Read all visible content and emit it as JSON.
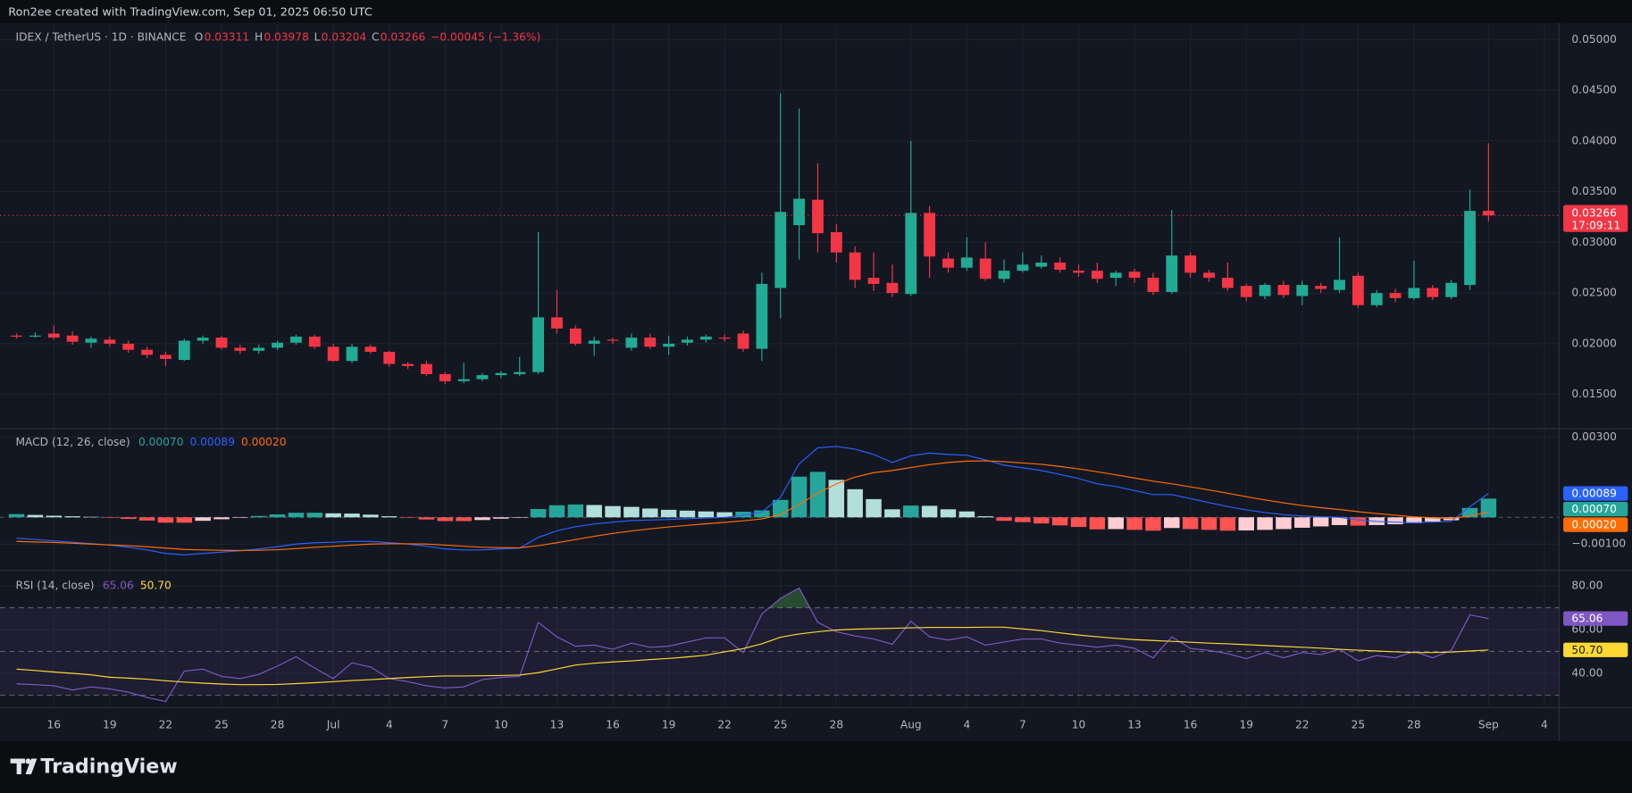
{
  "header": {
    "text": "Ron2ee created with TradingView.com, Sep 01, 2025 06:50 UTC"
  },
  "footer": {
    "logo": "TradingView"
  },
  "chart_data": [
    {
      "type": "candlestick",
      "title": "IDEX / TetherUS · 1D · BINANCE",
      "legend_keys": [
        "O",
        "H",
        "L",
        "C"
      ],
      "change": "−0.00045 (−1.36%)",
      "countdown": "17:09:11",
      "up_color": "#22ab94",
      "down_color": "#f23645",
      "grid": true,
      "open": [
        0.0208,
        0.0208,
        0.021,
        0.0208,
        0.0201,
        0.0204,
        0.02,
        0.0194,
        0.0189,
        0.0184,
        0.0203,
        0.0206,
        0.0196,
        0.0193,
        0.0196,
        0.0201,
        0.0207,
        0.0197,
        0.0183,
        0.0197,
        0.0192,
        0.018,
        0.018,
        0.017,
        0.0163,
        0.0165,
        0.0169,
        0.017,
        0.0172,
        0.0226,
        0.0215,
        0.02,
        0.0204,
        0.0196,
        0.0206,
        0.0197,
        0.0201,
        0.0204,
        0.0206,
        0.021,
        0.0195,
        0.0255,
        0.0317,
        0.0342,
        0.031,
        0.029,
        0.0265,
        0.026,
        0.0249,
        0.0329,
        0.0284,
        0.0275,
        0.0284,
        0.0264,
        0.0272,
        0.0276,
        0.028,
        0.0272,
        0.0272,
        0.0265,
        0.0271,
        0.0265,
        0.0251,
        0.0287,
        0.027,
        0.0265,
        0.0257,
        0.0247,
        0.0258,
        0.0247,
        0.0257,
        0.0253,
        0.0267,
        0.0238,
        0.025,
        0.0245,
        0.0255,
        0.0246,
        0.0258,
        0.03311
      ],
      "high": [
        0.021,
        0.0211,
        0.0218,
        0.0212,
        0.0207,
        0.0207,
        0.0203,
        0.0197,
        0.0192,
        0.0205,
        0.0208,
        0.0208,
        0.0199,
        0.0199,
        0.0203,
        0.0209,
        0.0209,
        0.02,
        0.02,
        0.0199,
        0.0193,
        0.0182,
        0.0183,
        0.0172,
        0.0181,
        0.0171,
        0.0173,
        0.0187,
        0.031,
        0.0253,
        0.0218,
        0.0207,
        0.0206,
        0.021,
        0.021,
        0.0208,
        0.0207,
        0.0209,
        0.0209,
        0.0213,
        0.027,
        0.0447,
        0.0432,
        0.0378,
        0.0318,
        0.0296,
        0.029,
        0.0278,
        0.04,
        0.0336,
        0.029,
        0.0305,
        0.03,
        0.0283,
        0.029,
        0.0287,
        0.0285,
        0.0278,
        0.028,
        0.0272,
        0.0274,
        0.027,
        0.0332,
        0.029,
        0.0273,
        0.028,
        0.0259,
        0.026,
        0.0262,
        0.0262,
        0.026,
        0.0305,
        0.027,
        0.0253,
        0.0254,
        0.0282,
        0.0258,
        0.0263,
        0.0352,
        0.03978
      ],
      "low": [
        0.0205,
        0.0206,
        0.0204,
        0.0199,
        0.0196,
        0.0197,
        0.0191,
        0.0186,
        0.0178,
        0.0183,
        0.02,
        0.0194,
        0.019,
        0.019,
        0.0194,
        0.0199,
        0.0195,
        0.0182,
        0.0181,
        0.019,
        0.0177,
        0.0175,
        0.0168,
        0.016,
        0.0161,
        0.0163,
        0.0166,
        0.0168,
        0.017,
        0.021,
        0.0198,
        0.0188,
        0.02,
        0.0193,
        0.0195,
        0.0189,
        0.0198,
        0.0201,
        0.0202,
        0.0192,
        0.0183,
        0.0225,
        0.0283,
        0.029,
        0.028,
        0.0255,
        0.0252,
        0.0246,
        0.0247,
        0.0265,
        0.027,
        0.0272,
        0.0262,
        0.026,
        0.027,
        0.0274,
        0.027,
        0.0266,
        0.026,
        0.0257,
        0.026,
        0.0248,
        0.0249,
        0.0265,
        0.0261,
        0.0252,
        0.0242,
        0.0244,
        0.0245,
        0.0238,
        0.025,
        0.025,
        0.0235,
        0.0236,
        0.0241,
        0.0243,
        0.0243,
        0.0244,
        0.0253,
        0.03204
      ],
      "close": [
        0.0207,
        0.0208,
        0.0206,
        0.0202,
        0.0205,
        0.02,
        0.0194,
        0.0189,
        0.0185,
        0.0203,
        0.0206,
        0.0196,
        0.0193,
        0.0196,
        0.0201,
        0.0207,
        0.0197,
        0.0183,
        0.0197,
        0.0192,
        0.018,
        0.0178,
        0.017,
        0.0163,
        0.0165,
        0.0169,
        0.0171,
        0.0172,
        0.0226,
        0.0215,
        0.02,
        0.0203,
        0.0203,
        0.0206,
        0.0197,
        0.02,
        0.0204,
        0.0207,
        0.0205,
        0.0195,
        0.0259,
        0.033,
        0.0343,
        0.0309,
        0.029,
        0.0263,
        0.0259,
        0.025,
        0.0329,
        0.0286,
        0.0275,
        0.0285,
        0.0264,
        0.0272,
        0.0278,
        0.028,
        0.0273,
        0.027,
        0.0264,
        0.027,
        0.0265,
        0.0251,
        0.0287,
        0.027,
        0.0265,
        0.0255,
        0.0246,
        0.0258,
        0.0248,
        0.0258,
        0.0254,
        0.0263,
        0.0238,
        0.025,
        0.0245,
        0.0255,
        0.0246,
        0.026,
        0.0331,
        0.03266
      ],
      "xlim": [
        -0.89,
        82.79
      ],
      "xticks": [
        {
          "value": 2,
          "label": "16"
        },
        {
          "value": 5,
          "label": "19"
        },
        {
          "value": 8,
          "label": "22"
        },
        {
          "value": 11,
          "label": "25"
        },
        {
          "value": 14,
          "label": "28"
        },
        {
          "value": 17,
          "label": "Jul"
        },
        {
          "value": 20,
          "label": "4"
        },
        {
          "value": 23,
          "label": "7"
        },
        {
          "value": 26,
          "label": "10"
        },
        {
          "value": 29,
          "label": "13"
        },
        {
          "value": 32,
          "label": "16"
        },
        {
          "value": 35,
          "label": "19"
        },
        {
          "value": 38,
          "label": "22"
        },
        {
          "value": 41,
          "label": "25"
        },
        {
          "value": 44,
          "label": "28"
        },
        {
          "value": 48,
          "label": "Aug"
        },
        {
          "value": 51,
          "label": "4"
        },
        {
          "value": 54,
          "label": "7"
        },
        {
          "value": 57,
          "label": "10"
        },
        {
          "value": 60,
          "label": "13"
        },
        {
          "value": 63,
          "label": "16"
        },
        {
          "value": 66,
          "label": "19"
        },
        {
          "value": 69,
          "label": "22"
        },
        {
          "value": 72,
          "label": "25"
        },
        {
          "value": 75,
          "label": "28"
        },
        {
          "value": 79,
          "label": "Sep"
        },
        {
          "value": 82,
          "label": "4"
        }
      ],
      "ylim": [
        0.01161,
        0.05144
      ],
      "yticks": [
        {
          "value": 0.015,
          "label": "0.01500"
        },
        {
          "value": 0.02,
          "label": "0.02000"
        },
        {
          "value": 0.025,
          "label": "0.02500"
        },
        {
          "value": 0.03,
          "label": "0.03000"
        },
        {
          "value": 0.035,
          "label": "0.03500"
        },
        {
          "value": 0.04,
          "label": "0.04000"
        },
        {
          "value": 0.045,
          "label": "0.04500"
        },
        {
          "value": 0.05,
          "label": "0.05000"
        }
      ]
    },
    {
      "type": "macd",
      "title": "MACD (12, 26, close)",
      "grid": true,
      "ylim": [
        -0.00198,
        0.00331
      ],
      "yticks": [
        {
          "value": 0.003,
          "label": "0.00300"
        },
        {
          "value": -0.001,
          "label": "−0.00100"
        }
      ],
      "hist_colors": {
        "up_rising": "#26a69a",
        "up_falling": "#b2dfdb",
        "down_rising": "#ffcdd2",
        "down_falling": "#ff5252"
      },
      "series": [
        {
          "style": "histogram",
          "color": "#26a69a",
          "label": "0.00070",
          "values": [
            0.00012,
            9e-05,
            6e-05,
            4e-05,
            2e-05,
            -1e-05,
            -6e-05,
            -0.00012,
            -0.0002,
            -0.0002,
            -0.00013,
            -7e-05,
            -1e-05,
            5e-05,
            0.00011,
            0.00017,
            0.00017,
            0.00015,
            0.00014,
            0.0001,
            4e-05,
            -1e-05,
            -8e-05,
            -0.00014,
            -0.00014,
            -0.0001,
            -5e-05,
            -1e-05,
            0.00031,
            0.00045,
            0.00048,
            0.00046,
            0.00042,
            0.00039,
            0.00033,
            0.00028,
            0.00025,
            0.00022,
            0.00019,
            0.00021,
            0.00026,
            0.00065,
            0.00152,
            0.0017,
            0.0014,
            0.00105,
            0.00068,
            0.0003,
            0.00044,
            0.00043,
            0.0003,
            0.00022,
            4e-05,
            -0.00013,
            -0.00018,
            -0.00023,
            -0.0003,
            -0.00036,
            -0.00045,
            -0.00044,
            -0.00047,
            -0.0005,
            -0.0004,
            -0.00044,
            -0.00047,
            -0.0005,
            -0.00049,
            -0.00047,
            -0.00044,
            -0.00039,
            -0.00034,
            -0.00029,
            -0.00031,
            -0.00029,
            -0.00026,
            -0.00022,
            -0.00016,
            -0.00011,
            0.00035,
            0.0007
          ]
        },
        {
          "style": "line",
          "color": "#2962ff",
          "label": "0.00089",
          "values": [
            -0.00078,
            -0.00083,
            -0.00088,
            -0.00093,
            -0.00098,
            -0.00104,
            -0.00112,
            -0.00122,
            -0.00135,
            -0.0014,
            -0.00135,
            -0.0013,
            -0.00125,
            -0.00118,
            -0.0011,
            -0.001,
            -0.00095,
            -0.00093,
            -0.0009,
            -0.0009,
            -0.00095,
            -0.001,
            -0.00108,
            -0.00118,
            -0.00122,
            -0.00122,
            -0.00118,
            -0.00115,
            -0.00075,
            -0.0005,
            -0.00035,
            -0.00025,
            -0.00018,
            -0.00012,
            -0.0001,
            -8e-05,
            -5e-05,
            -2e-05,
            0,
            8e-05,
            0.0002,
            0.00075,
            0.002,
            0.0026,
            0.00265,
            0.00255,
            0.00235,
            0.00205,
            0.0023,
            0.0024,
            0.00235,
            0.00232,
            0.00215,
            0.00195,
            0.00185,
            0.00175,
            0.0016,
            0.00145,
            0.00125,
            0.00115,
            0.001,
            0.00085,
            0.00085,
            0.0007,
            0.00055,
            0.0004,
            0.00028,
            0.00018,
            0.0001,
            5e-05,
            2e-05,
            0,
            -0.0001,
            -0.00015,
            -0.00018,
            -0.0002,
            -0.00018,
            -0.00015,
            0.0004,
            0.00089
          ]
        },
        {
          "style": "line",
          "color": "#ff6d00",
          "label": "0.00020",
          "values": [
            -0.0009,
            -0.00092,
            -0.00094,
            -0.00097,
            -0.001,
            -0.00103,
            -0.00106,
            -0.0011,
            -0.00115,
            -0.0012,
            -0.00122,
            -0.00123,
            -0.00124,
            -0.00123,
            -0.00121,
            -0.00117,
            -0.00112,
            -0.00108,
            -0.00104,
            -0.001,
            -0.00099,
            -0.00099,
            -0.001,
            -0.00104,
            -0.00108,
            -0.00112,
            -0.00113,
            -0.00114,
            -0.00106,
            -0.00095,
            -0.00083,
            -0.00071,
            -0.0006,
            -0.00051,
            -0.00043,
            -0.00036,
            -0.0003,
            -0.00024,
            -0.00019,
            -0.00013,
            -6e-05,
            0.0001,
            0.00048,
            0.0009,
            0.00125,
            0.0015,
            0.00167,
            0.00175,
            0.00186,
            0.00197,
            0.00205,
            0.0021,
            0.00211,
            0.00208,
            0.00203,
            0.00198,
            0.0019,
            0.00181,
            0.0017,
            0.00159,
            0.00147,
            0.00135,
            0.00125,
            0.00114,
            0.00102,
            0.0009,
            0.00077,
            0.00065,
            0.00054,
            0.00044,
            0.00036,
            0.00029,
            0.00021,
            0.00014,
            8e-05,
            2e-05,
            -2e-05,
            -4e-05,
            5e-05,
            0.0002
          ]
        }
      ]
    },
    {
      "type": "rsi",
      "title": "RSI (14, close)",
      "grid": true,
      "ylim": [
        24.3,
        87.1
      ],
      "yticks": [
        {
          "value": 80,
          "label": "80.00"
        },
        {
          "value": 60,
          "label": "60.00"
        },
        {
          "value": 40,
          "label": "40.00"
        }
      ],
      "bands": [
        70,
        50,
        30
      ],
      "band_color": "#7e57c2",
      "overbought_color": "#4caf50",
      "series": [
        {
          "color": "#7e57c2",
          "label": "65.06",
          "values": [
            35.2,
            34.8,
            34.3,
            32.4,
            33.8,
            32.9,
            31.4,
            29,
            27.1,
            41,
            41.9,
            38.6,
            37.6,
            39.5,
            43.3,
            47.6,
            42.4,
            37.6,
            44.8,
            42.9,
            37.6,
            36.2,
            34.3,
            33.3,
            33.8,
            37.1,
            38.1,
            38.6,
            63.3,
            56.7,
            52.4,
            52.9,
            51,
            53.8,
            51.9,
            52.4,
            54.3,
            56.2,
            56.2,
            49.5,
            67.1,
            74.3,
            79,
            63.3,
            59,
            57.1,
            55.7,
            53.3,
            63.8,
            56.7,
            55.2,
            56.7,
            52.9,
            54.3,
            55.7,
            55.7,
            53.8,
            52.9,
            51.9,
            52.9,
            51.4,
            47.1,
            56.7,
            51.4,
            50.5,
            49,
            46.7,
            49.5,
            47.1,
            49.5,
            48.6,
            51,
            45.7,
            48.1,
            47.1,
            50,
            47.1,
            50.5,
            66.7,
            65.06
          ]
        },
        {
          "color": "#fdd835",
          "label": "50.70",
          "values": [
            41.9,
            41.3,
            40.6,
            40,
            39.3,
            38.2,
            37.8,
            37.3,
            36.6,
            36,
            35.5,
            35.1,
            34.8,
            34.8,
            34.9,
            35.3,
            35.7,
            36.2,
            36.7,
            37.1,
            37.6,
            38.1,
            38.5,
            38.8,
            38.8,
            38.9,
            39,
            39.2,
            40.3,
            42,
            43.8,
            44.6,
            45.2,
            45.7,
            46.3,
            46.8,
            47.5,
            48.3,
            49.8,
            51.3,
            53.5,
            56.5,
            58,
            59,
            59.8,
            60.2,
            60.4,
            60.6,
            60.8,
            61,
            61,
            61,
            61.1,
            61.1,
            60.3,
            59.5,
            58.5,
            57.5,
            56.7,
            56,
            55.4,
            55,
            54.6,
            54.2,
            53.8,
            53.5,
            53.1,
            52.7,
            52.3,
            51.9,
            51.5,
            51,
            50.6,
            50.2,
            49.8,
            49.5,
            49.5,
            49.7,
            50.2,
            50.7
          ]
        }
      ]
    }
  ]
}
